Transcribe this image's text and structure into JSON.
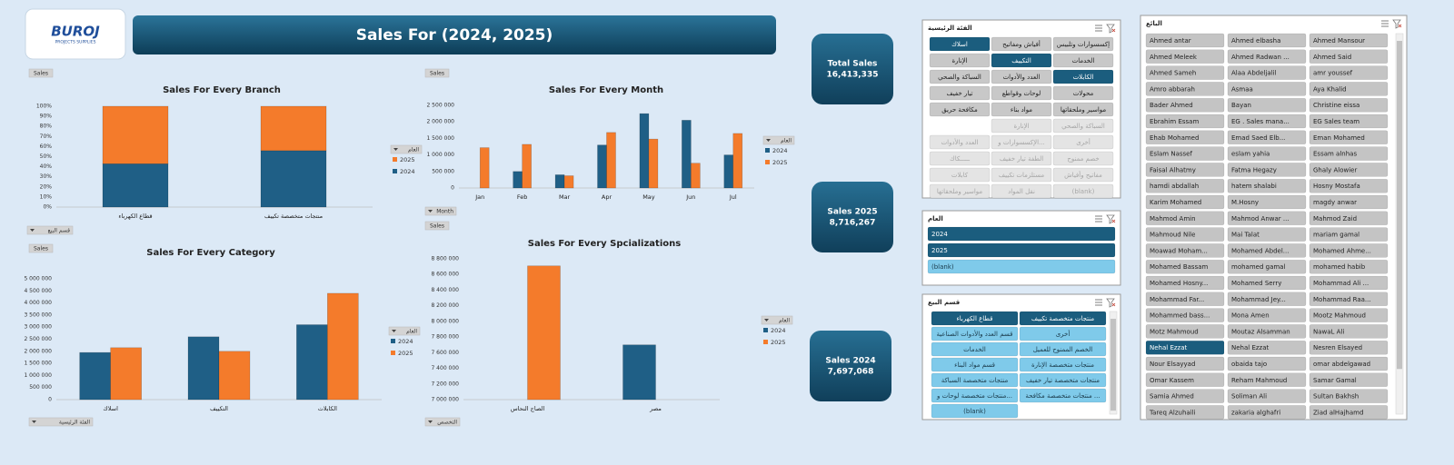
{
  "header": {
    "logo_text": "BUROJ",
    "logo_subtitle": "PROJECTS SUPPLIES",
    "title": "Sales For (2024, 2025)"
  },
  "kpis": [
    {
      "title": "Total Sales",
      "value": "16,413,335"
    },
    {
      "title": "Sales 2025",
      "value": "8,716,267"
    },
    {
      "title": "Sales 2024",
      "value": "7,697,068"
    }
  ],
  "chart_data": [
    {
      "type": "bar",
      "title": "Sales For Every Branch",
      "stacked": true,
      "categories": [
        "قطاع الكهرباء",
        "منتجات متخصصة تكييف"
      ],
      "series": [
        {
          "name": "2024",
          "color": "#1f5f86",
          "values": [
            43,
            56
          ]
        },
        {
          "name": "2025",
          "color": "#f47b2b",
          "values": [
            57,
            44
          ]
        }
      ],
      "ylim": [
        0,
        100
      ],
      "yticks": [
        {
          "value": 0,
          "label": "0%"
        },
        {
          "value": 10,
          "label": "10%"
        },
        {
          "value": 20,
          "label": "20%"
        },
        {
          "value": 30,
          "label": "30%"
        },
        {
          "value": 40,
          "label": "40%"
        },
        {
          "value": 50,
          "label": "50%"
        },
        {
          "value": 60,
          "label": "60%"
        },
        {
          "value": 70,
          "label": "70%"
        },
        {
          "value": 80,
          "label": "80%"
        },
        {
          "value": 90,
          "label": "90%"
        },
        {
          "value": 100,
          "label": "100%"
        }
      ],
      "legend": "right",
      "field_buttons": {
        "values": "Sales",
        "legend": "العام",
        "axis": "قسم البيع"
      }
    },
    {
      "type": "bar",
      "title": "Sales For Every Month",
      "stacked": false,
      "categories": [
        "Jan",
        "Feb",
        "Mar",
        "Apr",
        "May",
        "Jun",
        "Jul"
      ],
      "series": [
        {
          "name": "2024",
          "color": "#1f5f86",
          "values": [
            null,
            500000,
            400000,
            1300000,
            2250000,
            2050000,
            1000000
          ]
        },
        {
          "name": "2025",
          "color": "#f47b2b",
          "values": [
            1220000,
            1320000,
            370000,
            1680000,
            1480000,
            750000,
            1650000
          ]
        }
      ],
      "ylim": [
        0,
        2500000
      ],
      "yticks": [
        0,
        {
          "value": 500000,
          "label": "500 000"
        },
        {
          "value": 1000000,
          "label": "1 000 000"
        },
        {
          "value": 1500000,
          "label": "1 500 000"
        },
        {
          "value": 2000000,
          "label": "2 000 000"
        },
        {
          "value": 2500000,
          "label": "2 500 000"
        }
      ],
      "legend": "right",
      "field_buttons": {
        "values": "Sales",
        "legend": "العام",
        "axis": "Month"
      }
    },
    {
      "type": "bar",
      "title": "Sales For Every Category",
      "stacked": false,
      "categories": [
        "اسلاك",
        "التكييف",
        "الكابلات"
      ],
      "series": [
        {
          "name": "2024",
          "color": "#1f5f86",
          "values": [
            1950000,
            2600000,
            3100000
          ]
        },
        {
          "name": "2025",
          "color": "#f47b2b",
          "values": [
            2150000,
            2000000,
            4400000
          ]
        }
      ],
      "ylim": [
        0,
        5000000
      ],
      "yticks": [
        0,
        {
          "value": 500000,
          "label": "500 000"
        },
        {
          "value": 1000000,
          "label": "1 000 000"
        },
        {
          "value": 1500000,
          "label": "1 500 000"
        },
        {
          "value": 2000000,
          "label": "2 000 000"
        },
        {
          "value": 2500000,
          "label": "2 500 000"
        },
        {
          "value": 3000000,
          "label": "3 000 000"
        },
        {
          "value": 3500000,
          "label": "3 500 000"
        },
        {
          "value": 4000000,
          "label": "4 000 000"
        },
        {
          "value": 4500000,
          "label": "4 500 000"
        },
        {
          "value": 5000000,
          "label": "5 000 000"
        }
      ],
      "legend": "right",
      "field_buttons": {
        "values": "Sales",
        "legend": "العام",
        "axis": "الفئة الرئيسية"
      }
    },
    {
      "type": "bar",
      "title": "Sales For Every Spcializations",
      "stacked": false,
      "categories": [
        "الصاج النحاس",
        "مصر"
      ],
      "series": [
        {
          "name": "2024",
          "color": "#1f5f86",
          "values": [
            null,
            7700000
          ]
        },
        {
          "name": "2025",
          "color": "#f47b2b",
          "values": [
            8710000,
            null
          ]
        }
      ],
      "ylim": [
        7000000,
        8800000
      ],
      "yticks": [
        {
          "value": 7000000,
          "label": "7 000 000"
        },
        {
          "value": 7200000,
          "label": "7 200 000"
        },
        {
          "value": 7400000,
          "label": "7 400 000"
        },
        {
          "value": 7600000,
          "label": "7 600 000"
        },
        {
          "value": 7800000,
          "label": "7 800 000"
        },
        {
          "value": 8000000,
          "label": "8 000 000"
        },
        {
          "value": 8200000,
          "label": "8 200 000"
        },
        {
          "value": 8400000,
          "label": "8 400 000"
        },
        {
          "value": 8600000,
          "label": "8 600 000"
        },
        {
          "value": 8800000,
          "label": "8 800 000"
        }
      ],
      "legend": "right",
      "field_buttons": {
        "values": "Sales",
        "legend": "العام",
        "axis": "التخصص"
      }
    }
  ],
  "slicers": [
    {
      "title": "الفئة الرئيسية",
      "direction": "rtl",
      "rows": [
        [
          {
            "label": "إكسسوارات وتلبيس"
          },
          {
            "label": "أفياش ومفاتيح"
          },
          {
            "label": "اسلاك",
            "state": "selected"
          }
        ],
        [
          {
            "label": "الخدمات"
          },
          {
            "label": "التكييف",
            "state": "selected"
          },
          {
            "label": "الإنارة"
          }
        ],
        [
          {
            "label": "الكابلات",
            "state": "selected"
          },
          {
            "label": "العدد والأدوات"
          },
          {
            "label": "السباكة والصحي"
          }
        ],
        [
          {
            "label": "محولات"
          },
          {
            "label": "لوحات وقواطع"
          },
          {
            "label": "تيار خفيف"
          }
        ],
        [
          {
            "label": "مواسير وملحقاتها"
          },
          {
            "label": "مواد بناء"
          },
          {
            "label": "مكافحة حريق"
          }
        ],
        [
          {
            "label": "السباكة والصحي",
            "state": "disabled"
          },
          {
            "label": "الإنارة",
            "state": "disabled"
          }
        ],
        [
          {
            "label": "أخرى",
            "state": "disabled"
          },
          {
            "label": "الإكسسوارات و...",
            "state": "disabled"
          },
          {
            "label": "العدد والأدوات",
            "state": "disabled"
          }
        ],
        [
          {
            "label": "خصم ممنوح",
            "state": "disabled"
          },
          {
            "label": "الطفة تيار خفيف",
            "state": "disabled"
          },
          {
            "label": "ـــــكاك",
            "state": "disabled"
          }
        ],
        [
          {
            "label": "مفاتيح وأفياش",
            "state": "disabled"
          },
          {
            "label": "مستلزمات تكييف",
            "state": "disabled"
          },
          {
            "label": "كابلات",
            "state": "disabled"
          }
        ],
        [
          {
            "label": "(blank)",
            "state": "disabled"
          },
          {
            "label": "نقل المواد",
            "state": "disabled"
          },
          {
            "label": "مواسير وملحقاتها",
            "state": "disabled"
          }
        ]
      ]
    },
    {
      "title": "العام",
      "direction": "rtl",
      "rows": [
        [
          {
            "label": "2024",
            "state": "selected"
          }
        ],
        [
          {
            "label": "2025",
            "state": "selected"
          }
        ],
        [
          {
            "label": "(blank)"
          }
        ]
      ]
    },
    {
      "title": "قسم البيع",
      "direction": "rtl",
      "rows": [
        [
          {
            "label": "منتجات متخصصة تكييف",
            "state": "selected"
          },
          {
            "label": "قطاع الكهرباء",
            "state": "selected"
          }
        ],
        [
          {
            "label": "أخرى"
          },
          {
            "label": "قسم العدد والأدوات الصناعية"
          }
        ],
        [
          {
            "label": "الخصم الممنوح للعميل"
          },
          {
            "label": "الخدمات"
          }
        ],
        [
          {
            "label": "منتجات متخصصة الإنارة"
          },
          {
            "label": "قسم مواد البناء"
          }
        ],
        [
          {
            "label": "منتجات متخصصة تيار خفيف"
          },
          {
            "label": "منتجات متخصصة السباكة"
          }
        ],
        [
          {
            "label": "منتجات متخصصة مكافحة ..."
          },
          {
            "label": "منتجات متخصصة لوحات و..."
          }
        ],
        [
          null,
          {
            "label": "(blank)"
          }
        ]
      ]
    },
    {
      "title": "البائع",
      "direction": "ltr",
      "rows": [
        [
          {
            "label": "Ahmed antar"
          },
          {
            "label": "Ahmed elbasha"
          },
          {
            "label": "Ahmed Mansour"
          }
        ],
        [
          {
            "label": "Ahmed Meleek"
          },
          {
            "label": "Ahmed Radwan ..."
          },
          {
            "label": "Ahmed Said"
          }
        ],
        [
          {
            "label": "Ahmed Sameh"
          },
          {
            "label": "Alaa Abdeljalil"
          },
          {
            "label": "amr youssef"
          }
        ],
        [
          {
            "label": "Amro abbarah"
          },
          {
            "label": "Asmaa"
          },
          {
            "label": "Aya Khalid"
          }
        ],
        [
          {
            "label": "Bader Ahmed"
          },
          {
            "label": "Bayan"
          },
          {
            "label": "Christine eissa"
          }
        ],
        [
          {
            "label": "Ebrahim Essam"
          },
          {
            "label": "EG . Sales mana..."
          },
          {
            "label": "EG Sales team"
          }
        ],
        [
          {
            "label": "Ehab Mohamed"
          },
          {
            "label": "Emad Saed Elb..."
          },
          {
            "label": "Eman Mohamed"
          }
        ],
        [
          {
            "label": "Eslam Nassef"
          },
          {
            "label": "eslam yahia"
          },
          {
            "label": "Essam alnhas"
          }
        ],
        [
          {
            "label": "Faisal Alhatmy"
          },
          {
            "label": "Fatma Hegazy"
          },
          {
            "label": "Ghaly Alowier"
          }
        ],
        [
          {
            "label": "hamdi abdallah"
          },
          {
            "label": "hatem shalabi"
          },
          {
            "label": "Hosny Mostafa"
          }
        ],
        [
          {
            "label": "Karim Mohamed"
          },
          {
            "label": "M.Hosny"
          },
          {
            "label": "magdy anwar"
          }
        ],
        [
          {
            "label": "Mahmod Amin"
          },
          {
            "label": "Mahmod Anwar ..."
          },
          {
            "label": "Mahmod Zaid"
          }
        ],
        [
          {
            "label": "Mahmoud Nile"
          },
          {
            "label": "Mai Talat"
          },
          {
            "label": "mariam gamal"
          }
        ],
        [
          {
            "label": "Moawad Moham..."
          },
          {
            "label": "Mohamed Abdel..."
          },
          {
            "label": "Mohamed Ahme..."
          }
        ],
        [
          {
            "label": "Mohamed Bassam"
          },
          {
            "label": "mohamed gamal"
          },
          {
            "label": "mohamed habib"
          }
        ],
        [
          {
            "label": "Mohamed Hosny..."
          },
          {
            "label": "Mohamed Serry"
          },
          {
            "label": "Mohammad Ali ..."
          }
        ],
        [
          {
            "label": "Mohammad Far..."
          },
          {
            "label": "Mohammad Jey..."
          },
          {
            "label": "Mohammad Raa..."
          }
        ],
        [
          {
            "label": "Mohammed bass..."
          },
          {
            "label": "Mona Amen"
          },
          {
            "label": "Mootz Mahmoud"
          }
        ],
        [
          {
            "label": "Motz Mahmoud"
          },
          {
            "label": "Moutaz Alsamman"
          },
          {
            "label": "NawaL Ali"
          }
        ],
        [
          {
            "label": "Nehal Ezzat",
            "state": "selected"
          },
          {
            "label": "Nehal Ezzat"
          },
          {
            "label": "Nesren Elsayed"
          }
        ],
        [
          {
            "label": "Nour Elsayyad"
          },
          {
            "label": "obaida tajo"
          },
          {
            "label": "omar abdelgawad"
          }
        ],
        [
          {
            "label": "Omar Kassem"
          },
          {
            "label": "Reham Mahmoud"
          },
          {
            "label": "Samar Gamal"
          }
        ],
        [
          {
            "label": "Samia Ahmed"
          },
          {
            "label": "Soliman Ali"
          },
          {
            "label": "Sultan Bakhsh"
          }
        ],
        [
          {
            "label": "Tareq Alzuhaili"
          },
          {
            "label": "zakaria alghafri"
          },
          {
            "label": "Ziad alHajhamd"
          }
        ]
      ]
    }
  ]
}
